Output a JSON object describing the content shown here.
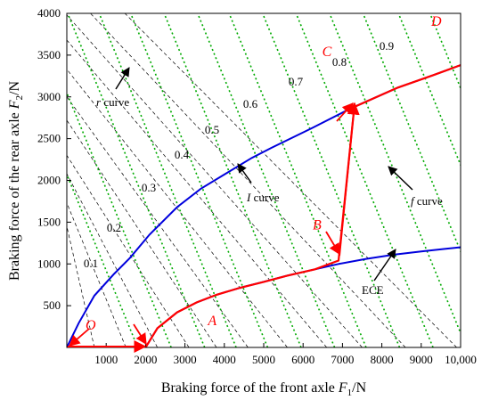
{
  "chart_data": {
    "type": "line",
    "xlabel": "Braking force of the front axle ",
    "xlabel_sym": "F",
    "xlabel_sub": "1",
    "xlabel_unit": "/N",
    "ylabel": "Braking force of the rear axle ",
    "ylabel_sym": "F",
    "ylabel_sub": "2",
    "ylabel_unit": "/N",
    "xlim": [
      0,
      10000
    ],
    "ylim": [
      0,
      4000
    ],
    "x_ticks": [
      1000,
      2000,
      3000,
      4000,
      5000,
      6000,
      7000,
      8000,
      9000,
      10000
    ],
    "x_tick_labels": [
      "1000",
      "2000",
      "3000",
      "4000",
      "5000",
      "6000",
      "7000",
      "8000",
      "9000",
      "10,000"
    ],
    "y_ticks": [
      500,
      1000,
      1500,
      2000,
      2500,
      3000,
      3500,
      4000
    ],
    "y_tick_labels": [
      "500",
      "1000",
      "1500",
      "2000",
      "2500",
      "3000",
      "3500",
      "4000"
    ],
    "grid": false,
    "colors": {
      "I_curve": "#0000dd",
      "ECE": "#0000dd",
      "actual_line": "#ff0000",
      "f_curves": "#00aa00",
      "r_curves": "#000000"
    },
    "series": [
      {
        "name": "I curve",
        "x": [
          0,
          300,
          700,
          1200,
          1600,
          2100,
          2800,
          3400,
          4000,
          4700,
          5200,
          6200,
          7200,
          8400,
          9300,
          10000
        ],
        "y": [
          0,
          290,
          620,
          880,
          1070,
          1350,
          1680,
          1900,
          2070,
          2270,
          2390,
          2620,
          2860,
          3110,
          3260,
          3380
        ]
      },
      {
        "name": "ECE",
        "x": [
          2000,
          2300,
          2800,
          3300,
          3800,
          4400,
          5000,
          5600,
          6300,
          6900,
          7600,
          8300,
          9000,
          9600,
          10000
        ],
        "y": [
          0,
          230,
          420,
          540,
          630,
          715,
          785,
          860,
          935,
          1000,
          1060,
          1110,
          1150,
          1180,
          1200
        ]
      }
    ],
    "actual_distribution": {
      "x": [
        0,
        2000,
        2300,
        2800,
        3300,
        3800,
        4400,
        5000,
        5600,
        6300,
        6900,
        7300,
        8400,
        9300,
        10000
      ],
      "y": [
        0,
        0,
        230,
        420,
        540,
        630,
        715,
        785,
        860,
        935,
        1040,
        2880,
        3110,
        3260,
        3380
      ]
    },
    "point_labels": [
      {
        "label": "O",
        "x": 0,
        "y": 0
      },
      {
        "label": "A",
        "x": 2000,
        "y": 0
      },
      {
        "label": "B",
        "x": 6900,
        "y": 1040
      },
      {
        "label": "C",
        "x": 7300,
        "y": 2880
      },
      {
        "label": "D",
        "x": 10000,
        "y": 3380
      }
    ],
    "f_curve_x_intercepts": [
      1800,
      2650,
      3500,
      4300,
      5100,
      5950,
      6800,
      7600,
      8450,
      9300,
      10150,
      11000,
      11900,
      12700,
      13600
    ],
    "f_curve_slope": -1.15,
    "r_curve_label_values": [
      "0.1",
      "0.2",
      "0.3",
      "0.4",
      "0.5",
      "0.6",
      "0.7",
      "0.8",
      "0.9"
    ],
    "annotations": [
      {
        "italic": "r",
        "text": " curve"
      },
      {
        "italic": "I",
        "text": " curve"
      },
      {
        "italic": "f",
        "text": " curve"
      },
      {
        "italic": "",
        "text": "ECE"
      }
    ]
  }
}
